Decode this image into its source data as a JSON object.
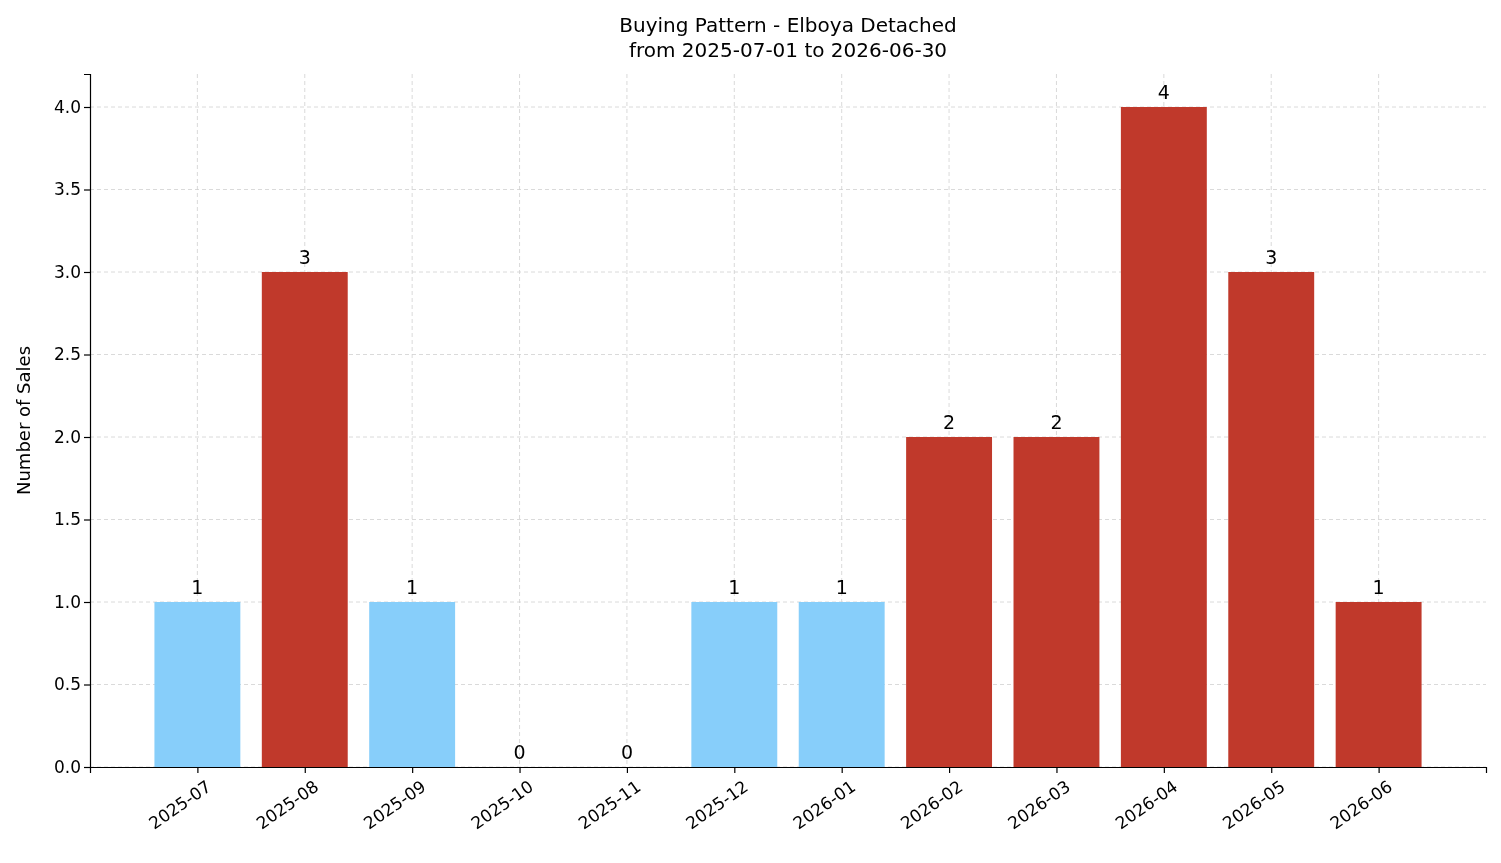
{
  "chart_data": {
    "type": "bar",
    "title": "Buying Pattern - Elboya Detached\nfrom 2025-07-01 to 2026-06-30",
    "ylabel": "Number of Sales",
    "categories": [
      "2025-07",
      "2025-08",
      "2025-09",
      "2025-10",
      "2025-11",
      "2025-12",
      "2026-01",
      "2026-02",
      "2026-03",
      "2026-04",
      "2026-05",
      "2026-06"
    ],
    "values": [
      1,
      3,
      1,
      0,
      0,
      1,
      1,
      2,
      2,
      4,
      3,
      1
    ],
    "colors": [
      "#87cefa",
      "#c0392b",
      "#87cefa",
      "#87cefa",
      "#87cefa",
      "#87cefa",
      "#87cefa",
      "#c0392b",
      "#c0392b",
      "#c0392b",
      "#c0392b",
      "#c0392b"
    ],
    "ylim": [
      0,
      4.2
    ],
    "yticks": [
      {
        "value": 0,
        "label": "0.0"
      },
      {
        "value": 0.5,
        "label": "0.5"
      },
      {
        "value": 1,
        "label": "1.0"
      },
      {
        "value": 1.5,
        "label": "1.5"
      },
      {
        "value": 2,
        "label": "2.0"
      },
      {
        "value": 2.5,
        "label": "2.5"
      },
      {
        "value": 3,
        "label": "3.0"
      },
      {
        "value": 3.5,
        "label": "3.5"
      },
      {
        "value": 4,
        "label": "4.0"
      }
    ],
    "grid": true,
    "data_labels": true
  }
}
